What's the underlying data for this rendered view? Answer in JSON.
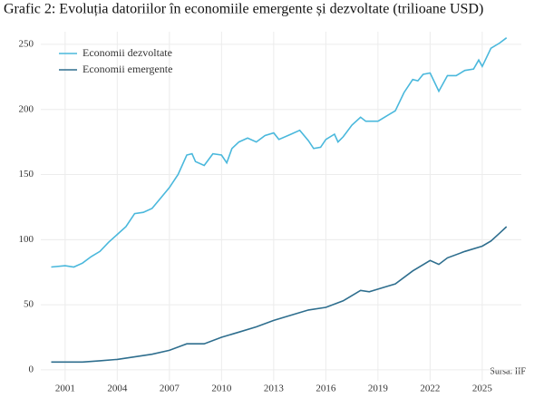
{
  "chart_data": {
    "type": "line",
    "title": "Grafic 2: Evoluția datoriilor în economiile emergente și dezvoltate (trilioane USD)",
    "source": "Sursa: IIF",
    "legend": "top-left",
    "grid": true,
    "xlim": [
      1999.6,
      2027.25
    ],
    "xticks": [
      2001,
      2004,
      2007,
      2010,
      2013,
      2016,
      2019,
      2022,
      2025
    ],
    "ylim": [
      -8.4,
      259.7
    ],
    "yticks": [
      0,
      50,
      100,
      150,
      200,
      250
    ],
    "series": [
      {
        "name": "Economii dezvoltate",
        "color": "#4ab8dc",
        "x": [
          2000.2,
          2001,
          2001.5,
          2002,
          2002.5,
          2003,
          2003.5,
          2004,
          2004.5,
          2005,
          2005.5,
          2006,
          2006.5,
          2007,
          2007.5,
          2008,
          2008.3,
          2008.5,
          2009,
          2009.5,
          2010,
          2010.3,
          2010.6,
          2011,
          2011.5,
          2012,
          2012.5,
          2013,
          2013.3,
          2014,
          2014.5,
          2015,
          2015.3,
          2015.7,
          2016,
          2016.5,
          2016.7,
          2017,
          2017.5,
          2018,
          2018.3,
          2019,
          2019.5,
          2020,
          2020.5,
          2021,
          2021.3,
          2021.6,
          2022,
          2022.5,
          2023,
          2023.5,
          2024,
          2024.5,
          2024.8,
          2025,
          2025.5,
          2026,
          2026.4
        ],
        "values": [
          79,
          80,
          79,
          82,
          87,
          91,
          98,
          104,
          110,
          120,
          121,
          124,
          132,
          140,
          150,
          165,
          166,
          160,
          157,
          166,
          165,
          159,
          170,
          175,
          178,
          175,
          180,
          182,
          177,
          181,
          184,
          176,
          170,
          171,
          177,
          181,
          175,
          179,
          188,
          194,
          191,
          191,
          195,
          199,
          213,
          223,
          222,
          227,
          228,
          214,
          226,
          226,
          230,
          231,
          238,
          233,
          247,
          251,
          255
        ]
      },
      {
        "name": "Economii emergente",
        "color": "#2e6e8e",
        "x": [
          2000.2,
          2002,
          2003,
          2004,
          2005,
          2006,
          2007,
          2008,
          2009,
          2010,
          2011,
          2012,
          2013,
          2014,
          2015,
          2016,
          2017,
          2018,
          2018.5,
          2019,
          2019.5,
          2020,
          2021,
          2022,
          2022.5,
          2023,
          2024,
          2025,
          2025.5,
          2026,
          2026.4
        ],
        "values": [
          6,
          6,
          7,
          8,
          10,
          12,
          15,
          20,
          20,
          25,
          29,
          33,
          38,
          42,
          46,
          48,
          53,
          61,
          60,
          62,
          64,
          66,
          76,
          84,
          81,
          86,
          91,
          95,
          99,
          105,
          110
        ]
      }
    ]
  }
}
